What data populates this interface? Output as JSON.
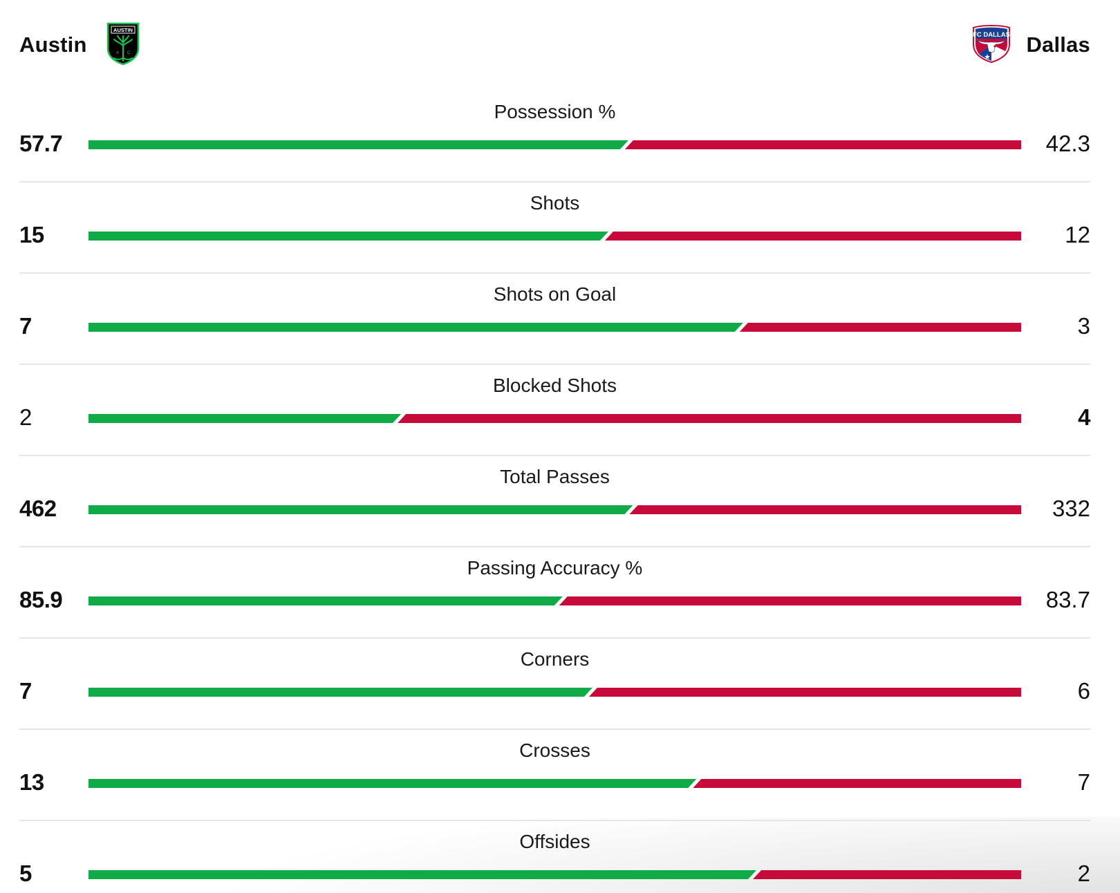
{
  "header": {
    "home_team": {
      "name": "Austin",
      "crest_text": "AUSTIN",
      "crest_icon": "austin-fc-crest-icon"
    },
    "away_team": {
      "name": "Dallas",
      "crest_text": "FC DALLAS",
      "crest_icon": "fc-dallas-crest-icon"
    }
  },
  "colors": {
    "home": "#10ab47",
    "away": "#c60b3b",
    "divider": "#e6e6e6",
    "text": "#111111"
  },
  "stats": [
    {
      "label": "Possession %",
      "home": "57.7",
      "away": "42.3",
      "leader": "home"
    },
    {
      "label": "Shots",
      "home": "15",
      "away": "12",
      "leader": "home"
    },
    {
      "label": "Shots on Goal",
      "home": "7",
      "away": "3",
      "leader": "home"
    },
    {
      "label": "Blocked Shots",
      "home": "2",
      "away": "4",
      "leader": "away"
    },
    {
      "label": "Total Passes",
      "home": "462",
      "away": "332",
      "leader": "home"
    },
    {
      "label": "Passing Accuracy %",
      "home": "85.9",
      "away": "83.7",
      "leader": "home"
    },
    {
      "label": "Corners",
      "home": "7",
      "away": "6",
      "leader": "home"
    },
    {
      "label": "Crosses",
      "home": "13",
      "away": "7",
      "leader": "home"
    },
    {
      "label": "Offsides",
      "home": "5",
      "away": "2",
      "leader": "home"
    }
  ]
}
